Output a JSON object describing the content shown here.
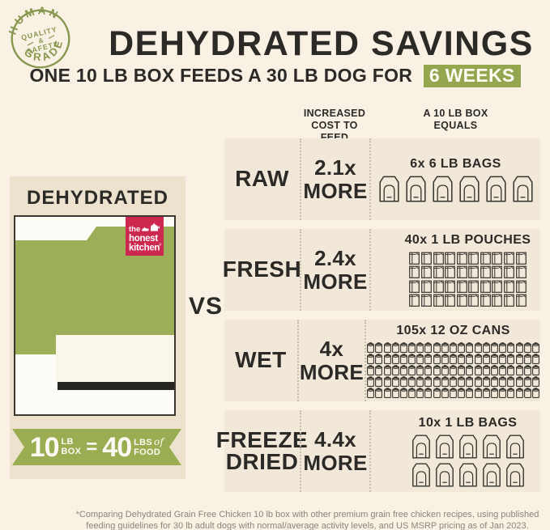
{
  "colors": {
    "background": "#f8f1e4",
    "row_background": "#f1e8d9",
    "panel_background": "#ece2ce",
    "brand_green": "#9cae57",
    "highlight_green": "#95a74e",
    "badge_olive": "#87974d",
    "logo_crimson": "#cd2850",
    "text_dark": "#2b2a26",
    "footer_gray": "#8b8579"
  },
  "badge": {
    "arc_top": "HUMAN",
    "arc_bottom": "GRADE",
    "center_line1": "QUALITY",
    "center_line2": "&",
    "center_line3": "SAFETY"
  },
  "header": {
    "title": "DEHYDRATED SAVINGS",
    "subtitle": "ONE 10 LB BOX FEEDS A 30 LB DOG FOR",
    "highlight": "6 WEEKS"
  },
  "panel": {
    "heading": "DEHYDRATED",
    "logo_line1": "the",
    "logo_line2": "honest",
    "logo_line3": "kitchen",
    "logo_reg": "®",
    "ribbon": {
      "num1": "10",
      "small1_top": "LB",
      "small1_bottom": "BOX",
      "eq": "=",
      "num2": "40",
      "small2_top": "LBS",
      "small2_of": "of",
      "small2_bottom": "FOOD"
    }
  },
  "vs": "VS",
  "table": {
    "header_cost_line1": "INCREASED",
    "header_cost_line2": "COST TO FEED",
    "header_equals_line1": "A 10 LB BOX",
    "header_equals_line2": "EQUALS",
    "rows": [
      {
        "id": "raw",
        "label_lines": [
          "RAW"
        ],
        "multiplier": "2.1x",
        "more": "MORE",
        "equals_label": "6x 6 LB BAGS",
        "icon": "bag-large-icon",
        "count": 6,
        "per_row": 6
      },
      {
        "id": "fresh",
        "label_lines": [
          "FRESH"
        ],
        "multiplier": "2.4x",
        "more": "MORE",
        "equals_label": "40x 1 LB POUCHES",
        "icon": "pouch-icon",
        "count": 40,
        "per_row": 10
      },
      {
        "id": "wet",
        "label_lines": [
          "WET"
        ],
        "multiplier": "4x",
        "more": "MORE",
        "equals_label": "105x 12 OZ CANS",
        "icon": "can-icon",
        "count": 105,
        "per_row": 21
      },
      {
        "id": "freeze-dried",
        "label_lines": [
          "FREEZE",
          "DRIED"
        ],
        "multiplier": "4.4x",
        "more": "MORE",
        "equals_label": "10x 1 LB BAGS",
        "icon": "bag-small-icon",
        "count": 10,
        "per_row": 5
      }
    ]
  },
  "footer": {
    "line1": "*Comparing Dehydrated Grain Free Chicken 10 lb box with other premium grain free chicken recipes, using published",
    "line2": "feeding guidelines for 30 lb adult dogs with normal/average activity levels, and US MSRP pricing as of Jan 2023."
  }
}
